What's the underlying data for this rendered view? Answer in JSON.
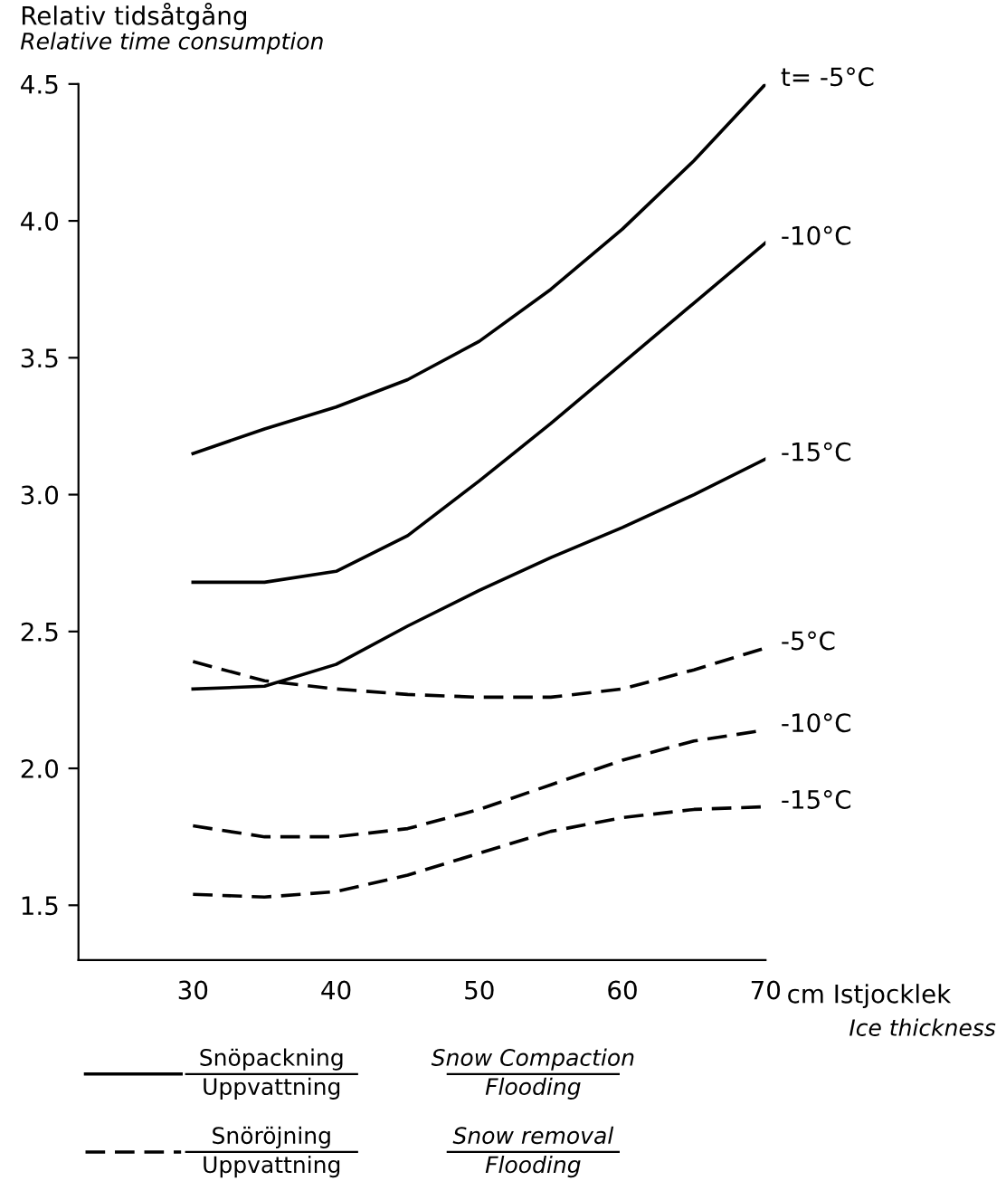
{
  "chart_data": {
    "type": "line",
    "ylabel": "Relativ tidsåtgång\nRelative time consumption",
    "xlabel": "cm Istjocklek\nIce thickness",
    "x": [
      30,
      35,
      40,
      45,
      50,
      55,
      60,
      65,
      70
    ],
    "series": [
      {
        "name": "t= -5°C",
        "color": "#000000",
        "line_style": "solid",
        "values": [
          3.15,
          3.24,
          3.32,
          3.42,
          3.56,
          3.75,
          3.97,
          4.22,
          4.5
        ]
      },
      {
        "name": "-10°C",
        "color": "#000000",
        "line_style": "solid",
        "values": [
          2.68,
          2.68,
          2.72,
          2.85,
          3.05,
          3.26,
          3.48,
          3.7,
          3.92
        ]
      },
      {
        "name": "-15°C",
        "color": "#000000",
        "line_style": "solid",
        "values": [
          2.29,
          2.3,
          2.38,
          2.52,
          2.65,
          2.77,
          2.88,
          3.0,
          3.13
        ]
      },
      {
        "name": "-5°C",
        "color": "#000000",
        "line_style": "dashed",
        "values": [
          2.39,
          2.32,
          2.29,
          2.27,
          2.26,
          2.26,
          2.29,
          2.36,
          2.44
        ]
      },
      {
        "name": "-10°C",
        "color": "#000000",
        "line_style": "dashed",
        "values": [
          1.79,
          1.75,
          1.75,
          1.78,
          1.85,
          1.94,
          2.03,
          2.1,
          2.14
        ]
      },
      {
        "name": "-15°C",
        "color": "#000000",
        "line_style": "dashed",
        "values": [
          1.54,
          1.53,
          1.55,
          1.61,
          1.69,
          1.77,
          1.82,
          1.85,
          1.86
        ]
      }
    ],
    "xlim": [
      22,
      70
    ],
    "ylim": [
      1.3,
      4.5
    ],
    "xticks": [
      30,
      40,
      50,
      60,
      70
    ],
    "yticks": [
      1.5,
      {
        "value": 2,
        "label": "2.0"
      },
      2.5,
      {
        "value": 3,
        "label": "3.0"
      },
      3.5,
      {
        "value": 4,
        "label": "4.0"
      },
      4.5
    ],
    "grid": false,
    "marker": "none",
    "annotations": [
      "Snöpackning",
      "Uppvattning",
      "Snow Compaction",
      "Flooding",
      "Snöröjning",
      "Uppvattning",
      "Snow removal",
      "Flooding"
    ]
  }
}
